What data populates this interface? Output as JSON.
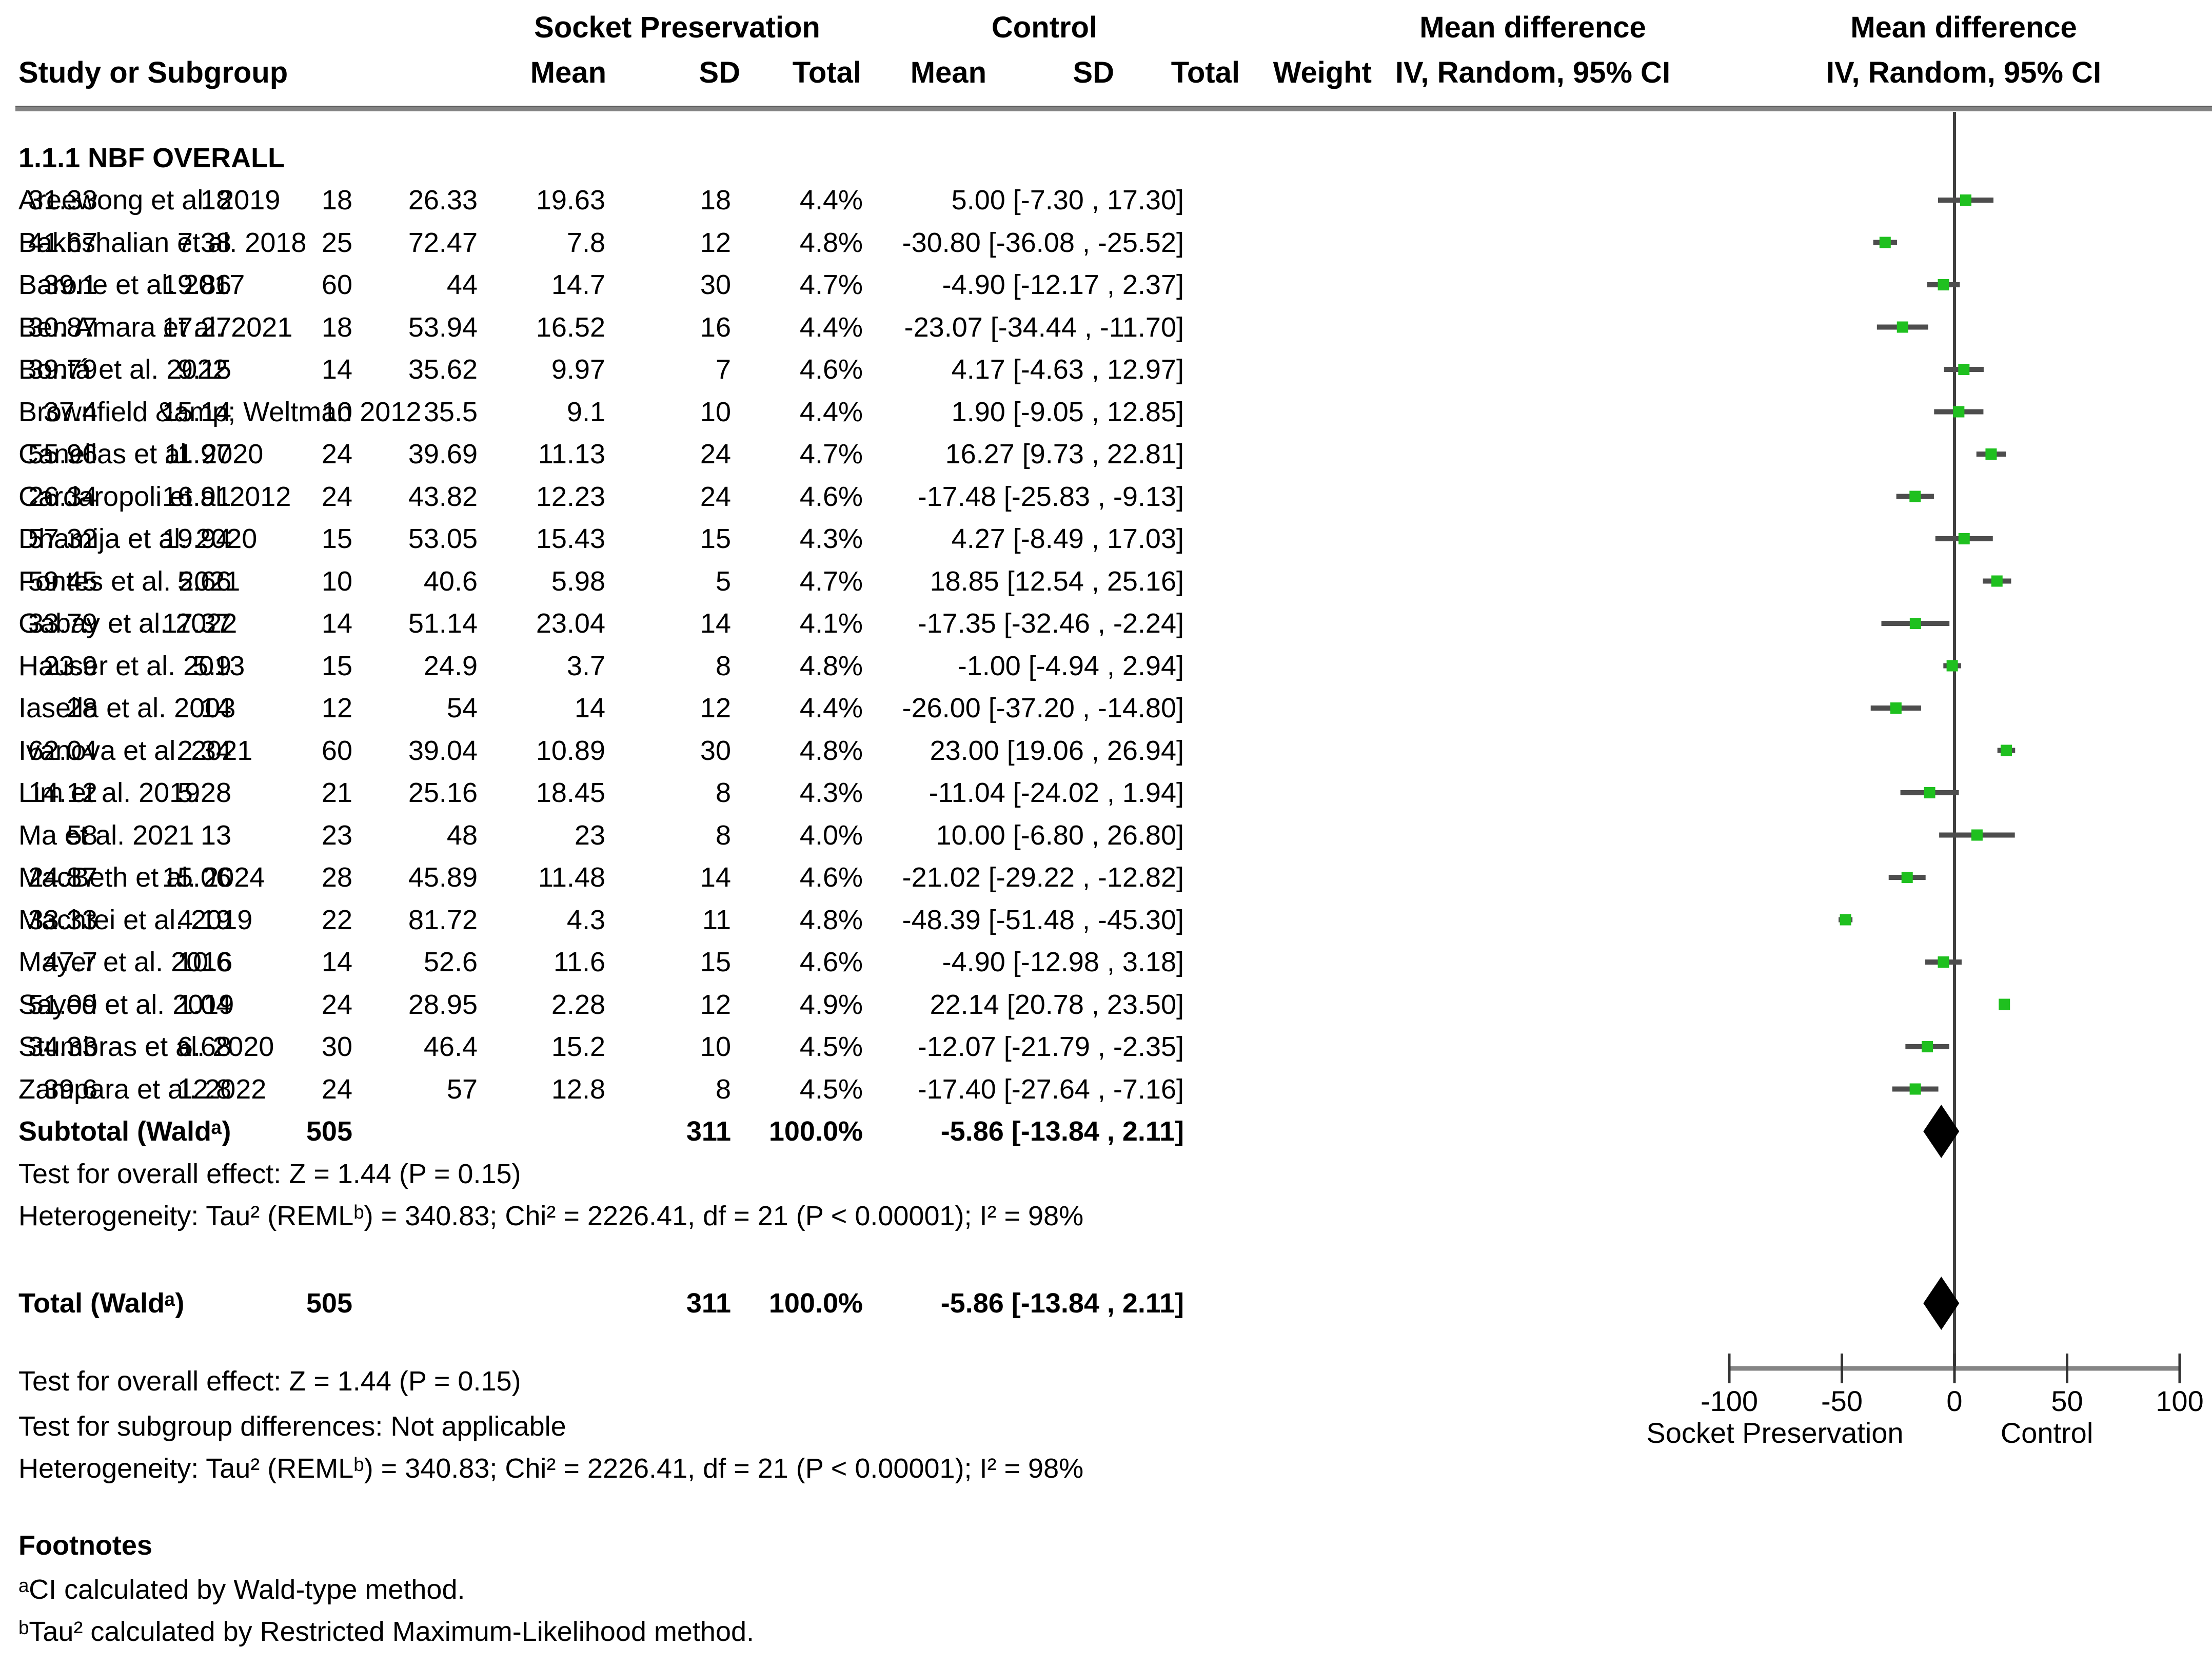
{
  "header": {
    "group1": "Socket Preservation",
    "group2": "Control",
    "mean_diff_text_col": "Mean difference",
    "mean_diff_plot_col": "Mean difference",
    "method_text_col": "IV, Random, 95% CI",
    "method_plot_col": "IV, Random, 95% CI",
    "study_col": "Study or Subgroup",
    "mean": "Mean",
    "sd": "SD",
    "total": "Total",
    "weight": "Weight"
  },
  "section_title": "1.1.1 NBF OVERALL",
  "studies": [
    {
      "name": "Areewong et al.  2019",
      "mean_sp": "31.33",
      "sd_sp": "18",
      "total_sp": "18",
      "mean_c": "26.33",
      "sd_c": "19.63",
      "total_c": "18",
      "weight": "4.4%",
      "ci_text": "5.00 [-7.30 , 17.30]"
    },
    {
      "name": "Bakhshalian et al. 2018",
      "mean_sp": "41.67",
      "sd_sp": "7.38",
      "total_sp": "25",
      "mean_c": "72.47",
      "sd_c": "7.8",
      "total_c": "12",
      "weight": "4.8%",
      "ci_text": "-30.80 [-36.08 , -25.52]"
    },
    {
      "name": "Barone et al.  2017",
      "mean_sp": "39.1",
      "sd_sp": "19.86",
      "total_sp": "60",
      "mean_c": "44",
      "sd_c": "14.7",
      "total_c": "30",
      "weight": "4.7%",
      "ci_text": "-4.90 [-12.17 , 2.37]"
    },
    {
      "name": "Ben Amara et al. 2021",
      "mean_sp": "30.87",
      "sd_sp": "17.27",
      "total_sp": "18",
      "mean_c": "53.94",
      "sd_c": "16.52",
      "total_c": "16",
      "weight": "4.4%",
      "ci_text": "-23.07 [-34.44 , -11.70]"
    },
    {
      "name": "Bontá et al. 2022",
      "mean_sp": "39.79",
      "sd_sp": "9.15",
      "total_sp": "14",
      "mean_c": "35.62",
      "sd_c": "9.97",
      "total_c": "7",
      "weight": "4.6%",
      "ci_text": "4.17 [-4.63 , 12.97]"
    },
    {
      "name": "Brownfield &amp; Weltman 2012",
      "mean_sp": "37.4",
      "sd_sp": "15.14",
      "total_sp": "10",
      "mean_c": "35.5",
      "sd_c": "9.1",
      "total_c": "10",
      "weight": "4.4%",
      "ci_text": "1.90 [-9.05 , 12.85]"
    },
    {
      "name": "Canellas et al. 2020",
      "mean_sp": "55.96",
      "sd_sp": "11.97",
      "total_sp": "24",
      "mean_c": "39.69",
      "sd_c": "11.13",
      "total_c": "24",
      "weight": "4.7%",
      "ci_text": "16.27 [9.73 , 22.81]"
    },
    {
      "name": "Cardaropoli et al.2012",
      "mean_sp": "26.34",
      "sd_sp": "16.91",
      "total_sp": "24",
      "mean_c": "43.82",
      "sd_c": "12.23",
      "total_c": "24",
      "weight": "4.6%",
      "ci_text": "-17.48 [-25.83 , -9.13]"
    },
    {
      "name": "Dhamija et al. 2020",
      "mean_sp": "57.32",
      "sd_sp": "19.94",
      "total_sp": "15",
      "mean_c": "53.05",
      "sd_c": "15.43",
      "total_c": "15",
      "weight": "4.3%",
      "ci_text": "4.27 [-8.49 , 17.03]"
    },
    {
      "name": "Fontes et al. 2021",
      "mean_sp": "59.45",
      "sd_sp": "5.66",
      "total_sp": "10",
      "mean_c": "40.6",
      "sd_c": "5.98",
      "total_c": "5",
      "weight": "4.7%",
      "ci_text": "18.85 [12.54 , 25.16]"
    },
    {
      "name": "Gabay et al. 2022",
      "mean_sp": "33.79",
      "sd_sp": "17.37",
      "total_sp": "14",
      "mean_c": "51.14",
      "sd_c": "23.04",
      "total_c": "14",
      "weight": "4.1%",
      "ci_text": "-17.35 [-32.46 , -2.24]"
    },
    {
      "name": "Hauser et al. 2013",
      "mean_sp": "23.9",
      "sd_sp": "5.9",
      "total_sp": "15",
      "mean_c": "24.9",
      "sd_c": "3.7",
      "total_c": "8",
      "weight": "4.8%",
      "ci_text": "-1.00 [-4.94 , 2.94]"
    },
    {
      "name": "Iasella et al. 2003",
      "mean_sp": "28",
      "sd_sp": "14",
      "total_sp": "12",
      "mean_c": "54",
      "sd_c": "14",
      "total_c": "12",
      "weight": "4.4%",
      "ci_text": "-26.00 [-37.20 , -14.80]"
    },
    {
      "name": "Ivanova et al. 2021",
      "mean_sp": "62.04",
      "sd_sp": "2.34",
      "total_sp": "60",
      "mean_c": "39.04",
      "sd_c": "10.89",
      "total_c": "30",
      "weight": "4.8%",
      "ci_text": "23.00 [19.06 , 26.94]"
    },
    {
      "name": "Lim et al. 2019",
      "mean_sp": "14.12",
      "sd_sp": "5.28",
      "total_sp": "21",
      "mean_c": "25.16",
      "sd_c": "18.45",
      "total_c": "8",
      "weight": "4.3%",
      "ci_text": "-11.04 [-24.02 , 1.94]"
    },
    {
      "name": "Ma et al. 2021",
      "mean_sp": "58",
      "sd_sp": "13",
      "total_sp": "23",
      "mean_c": "48",
      "sd_c": "23",
      "total_c": "8",
      "weight": "4.0%",
      "ci_text": "10.00 [-6.80 , 26.80]"
    },
    {
      "name": "MacBeth et al. 2024",
      "mean_sp": "24.87",
      "sd_sp": "15.06",
      "total_sp": "28",
      "mean_c": "45.89",
      "sd_c": "11.48",
      "total_c": "14",
      "weight": "4.6%",
      "ci_text": "-21.02 [-29.22 , -12.82]"
    },
    {
      "name": "Machtei  et al. 2019",
      "mean_sp": "33.33",
      "sd_sp": "4.19",
      "total_sp": "22",
      "mean_c": "81.72",
      "sd_c": "4.3",
      "total_c": "11",
      "weight": "4.8%",
      "ci_text": "-48.39 [-51.48 , -45.30]"
    },
    {
      "name": "Mayer et al. 2016",
      "mean_sp": "47.7",
      "sd_sp": "10.6",
      "total_sp": "14",
      "mean_c": "52.6",
      "sd_c": "11.6",
      "total_c": "15",
      "weight": "4.6%",
      "ci_text": "-4.90 [-12.98 , 3.18]"
    },
    {
      "name": "Sayed et al. 2019",
      "mean_sp": "51.09",
      "sd_sp": "1.04",
      "total_sp": "24",
      "mean_c": "28.95",
      "sd_c": "2.28",
      "total_c": "12",
      "weight": "4.9%",
      "ci_text": "22.14 [20.78 , 23.50]"
    },
    {
      "name": "Stumbras et al.  2020",
      "mean_sp": "34.33",
      "sd_sp": "6.68",
      "total_sp": "30",
      "mean_c": "46.4",
      "sd_c": "15.2",
      "total_c": "10",
      "weight": "4.5%",
      "ci_text": "-12.07 [-21.79 , -2.35]"
    },
    {
      "name": "Zampara et al. 2022",
      "mean_sp": "39.6",
      "sd_sp": "12.8",
      "total_sp": "24",
      "mean_c": "57",
      "sd_c": "12.8",
      "total_c": "8",
      "weight": "4.5%",
      "ci_text": "-17.40 [-27.64 , -7.16]"
    }
  ],
  "subtotal": {
    "label": "Subtotal (Waldᵃ)",
    "total_sp": "505",
    "total_c": "311",
    "weight": "100.0%",
    "ci_text": "-5.86 [-13.84 , 2.11]"
  },
  "subtotal_tests": [
    "Test for overall effect: Z = 1.44 (P = 0.15)",
    "Heterogeneity: Tau² (REMLᵇ) = 340.83; Chi² = 2226.41, df = 21 (P < 0.00001); I² = 98%"
  ],
  "total": {
    "label": "Total (Waldᵃ)",
    "total_sp": "505",
    "total_c": "311",
    "weight": "100.0%",
    "ci_text": "-5.86 [-13.84 , 2.11]"
  },
  "bottom_tests": [
    "Test for overall effect: Z = 1.44 (P = 0.15)",
    "Test for subgroup differences: Not applicable",
    "Heterogeneity: Tau² (REMLᵇ) = 340.83; Chi² = 2226.41, df = 21 (P < 0.00001); I² = 98%"
  ],
  "footnotes": {
    "title": "Footnotes",
    "items": [
      "ᵃCI calculated by Wald-type method.",
      "ᵇTau² calculated by Restricted Maximum-Likelihood method."
    ]
  },
  "axis": {
    "ticks": [
      "-100",
      "-50",
      "0",
      "50",
      "100"
    ],
    "left_label": "Socket Preservation",
    "right_label": "Control"
  },
  "colors": {
    "marker_green": "#1FC01F",
    "ci_bar_gray": "#4d4d4d",
    "zero_line_gray": "#3f3f3f",
    "axis_gray": "#858585",
    "diamond_black": "#000000"
  },
  "chart_data": {
    "type": "scatter",
    "subtype": "forest-plot",
    "title": "Mean difference, IV, Random, 95% CI",
    "xlim": [
      -100,
      100
    ],
    "x_ticks": [
      -100,
      -50,
      0,
      50,
      100
    ],
    "x_left_label": "Socket Preservation",
    "x_right_label": "Control",
    "grid": false,
    "points": [
      {
        "study": "Areewong et al. 2019",
        "md": 5.0,
        "lo": -7.3,
        "hi": 17.3
      },
      {
        "study": "Bakhshalian et al. 2018",
        "md": -30.8,
        "lo": -36.08,
        "hi": -25.52
      },
      {
        "study": "Barone et al. 2017",
        "md": -4.9,
        "lo": -12.17,
        "hi": 2.37
      },
      {
        "study": "Ben Amara et al. 2021",
        "md": -23.07,
        "lo": -34.44,
        "hi": -11.7
      },
      {
        "study": "Bontá et al. 2022",
        "md": 4.17,
        "lo": -4.63,
        "hi": 12.97
      },
      {
        "study": "Brownfield &amp; Weltman 2012",
        "md": 1.9,
        "lo": -9.05,
        "hi": 12.85
      },
      {
        "study": "Canellas et al. 2020",
        "md": 16.27,
        "lo": 9.73,
        "hi": 22.81
      },
      {
        "study": "Cardaropoli et al.2012",
        "md": -17.48,
        "lo": -25.83,
        "hi": -9.13
      },
      {
        "study": "Dhamija et al. 2020",
        "md": 4.27,
        "lo": -8.49,
        "hi": 17.03
      },
      {
        "study": "Fontes et al. 2021",
        "md": 18.85,
        "lo": 12.54,
        "hi": 25.16
      },
      {
        "study": "Gabay et al. 2022",
        "md": -17.35,
        "lo": -32.46,
        "hi": -2.24
      },
      {
        "study": "Hauser et al. 2013",
        "md": -1.0,
        "lo": -4.94,
        "hi": 2.94
      },
      {
        "study": "Iasella et al. 2003",
        "md": -26.0,
        "lo": -37.2,
        "hi": -14.8
      },
      {
        "study": "Ivanova et al. 2021",
        "md": 23.0,
        "lo": 19.06,
        "hi": 26.94
      },
      {
        "study": "Lim et al. 2019",
        "md": -11.04,
        "lo": -24.02,
        "hi": 1.94
      },
      {
        "study": "Ma et al. 2021",
        "md": 10.0,
        "lo": -6.8,
        "hi": 26.8
      },
      {
        "study": "MacBeth et al. 2024",
        "md": -21.02,
        "lo": -29.22,
        "hi": -12.82
      },
      {
        "study": "Machtei et al. 2019",
        "md": -48.39,
        "lo": -51.48,
        "hi": -45.3
      },
      {
        "study": "Mayer et al. 2016",
        "md": -4.9,
        "lo": -12.98,
        "hi": 3.18
      },
      {
        "study": "Sayed et al. 2019",
        "md": 22.14,
        "lo": 20.78,
        "hi": 23.5
      },
      {
        "study": "Stumbras et al. 2020",
        "md": -12.07,
        "lo": -21.79,
        "hi": -2.35
      },
      {
        "study": "Zampara et al. 2022",
        "md": -17.4,
        "lo": -27.64,
        "hi": -7.16
      }
    ],
    "summaries": [
      {
        "label": "Subtotal (Waldᵃ)",
        "md": -5.86,
        "lo": -13.84,
        "hi": 2.11
      },
      {
        "label": "Total (Waldᵃ)",
        "md": -5.86,
        "lo": -13.84,
        "hi": 2.11
      }
    ]
  }
}
